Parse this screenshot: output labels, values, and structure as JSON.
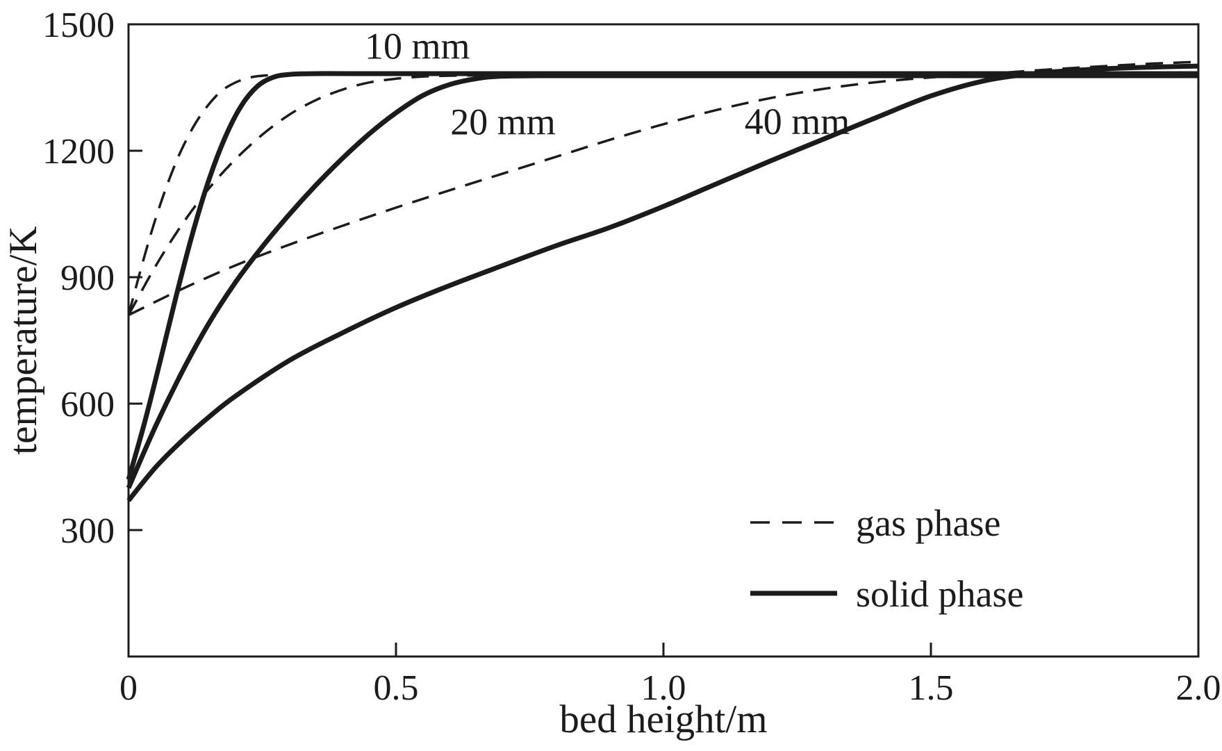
{
  "figure": {
    "background": "#ffffff",
    "ink_color": "#1b1b1b"
  },
  "chart_data": {
    "type": "line",
    "title": "",
    "xlabel": "bed height/m",
    "ylabel": "temperature/K",
    "xlim": [
      0,
      2
    ],
    "ylim": [
      0,
      1500
    ],
    "x_ticks": [
      0,
      0.5,
      1,
      1.5,
      2
    ],
    "x_tick_labels": [
      "0",
      "0.5",
      "1.0",
      "1.5",
      "2.0"
    ],
    "y_ticks": [
      300,
      600,
      900,
      1200,
      1500
    ],
    "y_tick_labels": [
      "300",
      "600",
      "900",
      "1200",
      "1500"
    ],
    "grid": false,
    "legend": {
      "position": "lower-right",
      "entries": [
        {
          "label": "gas phase",
          "style": "dashed"
        },
        {
          "label": "solid phase",
          "style": "solid"
        }
      ]
    },
    "annotations": [
      {
        "text": "10 mm",
        "x": 0.54,
        "y": 1448
      },
      {
        "text": "20 mm",
        "x": 0.7,
        "y": 1268
      },
      {
        "text": "40 mm",
        "x": 1.25,
        "y": 1269
      }
    ],
    "series": [
      {
        "name": "10 mm gas phase",
        "size": "10 mm",
        "phase": "gas",
        "style": "dashed",
        "points": [
          [
            0,
            810
          ],
          [
            0.02,
            905
          ],
          [
            0.04,
            995
          ],
          [
            0.06,
            1075
          ],
          [
            0.08,
            1145
          ],
          [
            0.1,
            1205
          ],
          [
            0.125,
            1265
          ],
          [
            0.15,
            1310
          ],
          [
            0.175,
            1343
          ],
          [
            0.2,
            1362
          ],
          [
            0.225,
            1373
          ],
          [
            0.25,
            1378
          ],
          [
            0.3,
            1381
          ],
          [
            0.4,
            1382
          ],
          [
            0.6,
            1382
          ],
          [
            1.0,
            1382
          ],
          [
            1.5,
            1382
          ],
          [
            2.0,
            1382
          ]
        ]
      },
      {
        "name": "10 mm solid phase",
        "size": "10 mm",
        "phase": "solid",
        "style": "solid",
        "points": [
          [
            0,
            420
          ],
          [
            0.03,
            555
          ],
          [
            0.06,
            705
          ],
          [
            0.09,
            860
          ],
          [
            0.12,
            1005
          ],
          [
            0.15,
            1130
          ],
          [
            0.18,
            1230
          ],
          [
            0.21,
            1305
          ],
          [
            0.24,
            1352
          ],
          [
            0.27,
            1374
          ],
          [
            0.3,
            1381
          ],
          [
            0.35,
            1383
          ],
          [
            0.5,
            1383
          ],
          [
            1.0,
            1383
          ],
          [
            1.5,
            1383
          ],
          [
            2.0,
            1383
          ]
        ]
      },
      {
        "name": "20 mm gas phase",
        "size": "20 mm",
        "phase": "gas",
        "style": "dashed",
        "points": [
          [
            0,
            810
          ],
          [
            0.05,
            925
          ],
          [
            0.1,
            1025
          ],
          [
            0.15,
            1110
          ],
          [
            0.2,
            1180
          ],
          [
            0.25,
            1238
          ],
          [
            0.3,
            1285
          ],
          [
            0.35,
            1320
          ],
          [
            0.4,
            1345
          ],
          [
            0.45,
            1362
          ],
          [
            0.5,
            1371
          ],
          [
            0.55,
            1376
          ],
          [
            0.6,
            1378
          ],
          [
            0.7,
            1379
          ],
          [
            1.0,
            1379
          ],
          [
            1.5,
            1379
          ],
          [
            2.0,
            1379
          ]
        ]
      },
      {
        "name": "20 mm solid phase",
        "size": "20 mm",
        "phase": "solid",
        "style": "solid",
        "points": [
          [
            0,
            400
          ],
          [
            0.05,
            545
          ],
          [
            0.1,
            675
          ],
          [
            0.15,
            790
          ],
          [
            0.2,
            888
          ],
          [
            0.25,
            972
          ],
          [
            0.3,
            1048
          ],
          [
            0.35,
            1118
          ],
          [
            0.4,
            1182
          ],
          [
            0.45,
            1240
          ],
          [
            0.5,
            1290
          ],
          [
            0.55,
            1331
          ],
          [
            0.6,
            1357
          ],
          [
            0.65,
            1371
          ],
          [
            0.7,
            1377
          ],
          [
            0.8,
            1378
          ],
          [
            1.0,
            1378
          ],
          [
            1.5,
            1378
          ],
          [
            2.0,
            1378
          ]
        ]
      },
      {
        "name": "40 mm gas phase",
        "size": "40 mm",
        "phase": "gas",
        "style": "dashed",
        "points": [
          [
            0,
            810
          ],
          [
            0.1,
            872
          ],
          [
            0.2,
            928
          ],
          [
            0.3,
            977
          ],
          [
            0.4,
            1022
          ],
          [
            0.5,
            1065
          ],
          [
            0.6,
            1106
          ],
          [
            0.7,
            1146
          ],
          [
            0.8,
            1186
          ],
          [
            0.9,
            1226
          ],
          [
            1.0,
            1263
          ],
          [
            1.1,
            1297
          ],
          [
            1.2,
            1325
          ],
          [
            1.3,
            1347
          ],
          [
            1.4,
            1363
          ],
          [
            1.5,
            1374
          ],
          [
            1.6,
            1382
          ],
          [
            1.7,
            1391
          ],
          [
            1.8,
            1399
          ],
          [
            1.9,
            1406
          ],
          [
            2.0,
            1411
          ]
        ]
      },
      {
        "name": "40 mm solid phase",
        "size": "40 mm",
        "phase": "solid",
        "style": "solid",
        "points": [
          [
            0,
            370
          ],
          [
            0.05,
            448
          ],
          [
            0.1,
            512
          ],
          [
            0.15,
            568
          ],
          [
            0.2,
            618
          ],
          [
            0.3,
            702
          ],
          [
            0.4,
            768
          ],
          [
            0.5,
            828
          ],
          [
            0.6,
            880
          ],
          [
            0.7,
            928
          ],
          [
            0.8,
            975
          ],
          [
            0.9,
            1018
          ],
          [
            1.0,
            1068
          ],
          [
            1.1,
            1122
          ],
          [
            1.2,
            1176
          ],
          [
            1.3,
            1228
          ],
          [
            1.4,
            1280
          ],
          [
            1.5,
            1330
          ],
          [
            1.6,
            1366
          ],
          [
            1.7,
            1384
          ],
          [
            1.8,
            1393
          ],
          [
            1.9,
            1398
          ],
          [
            2.0,
            1401
          ]
        ]
      }
    ]
  }
}
